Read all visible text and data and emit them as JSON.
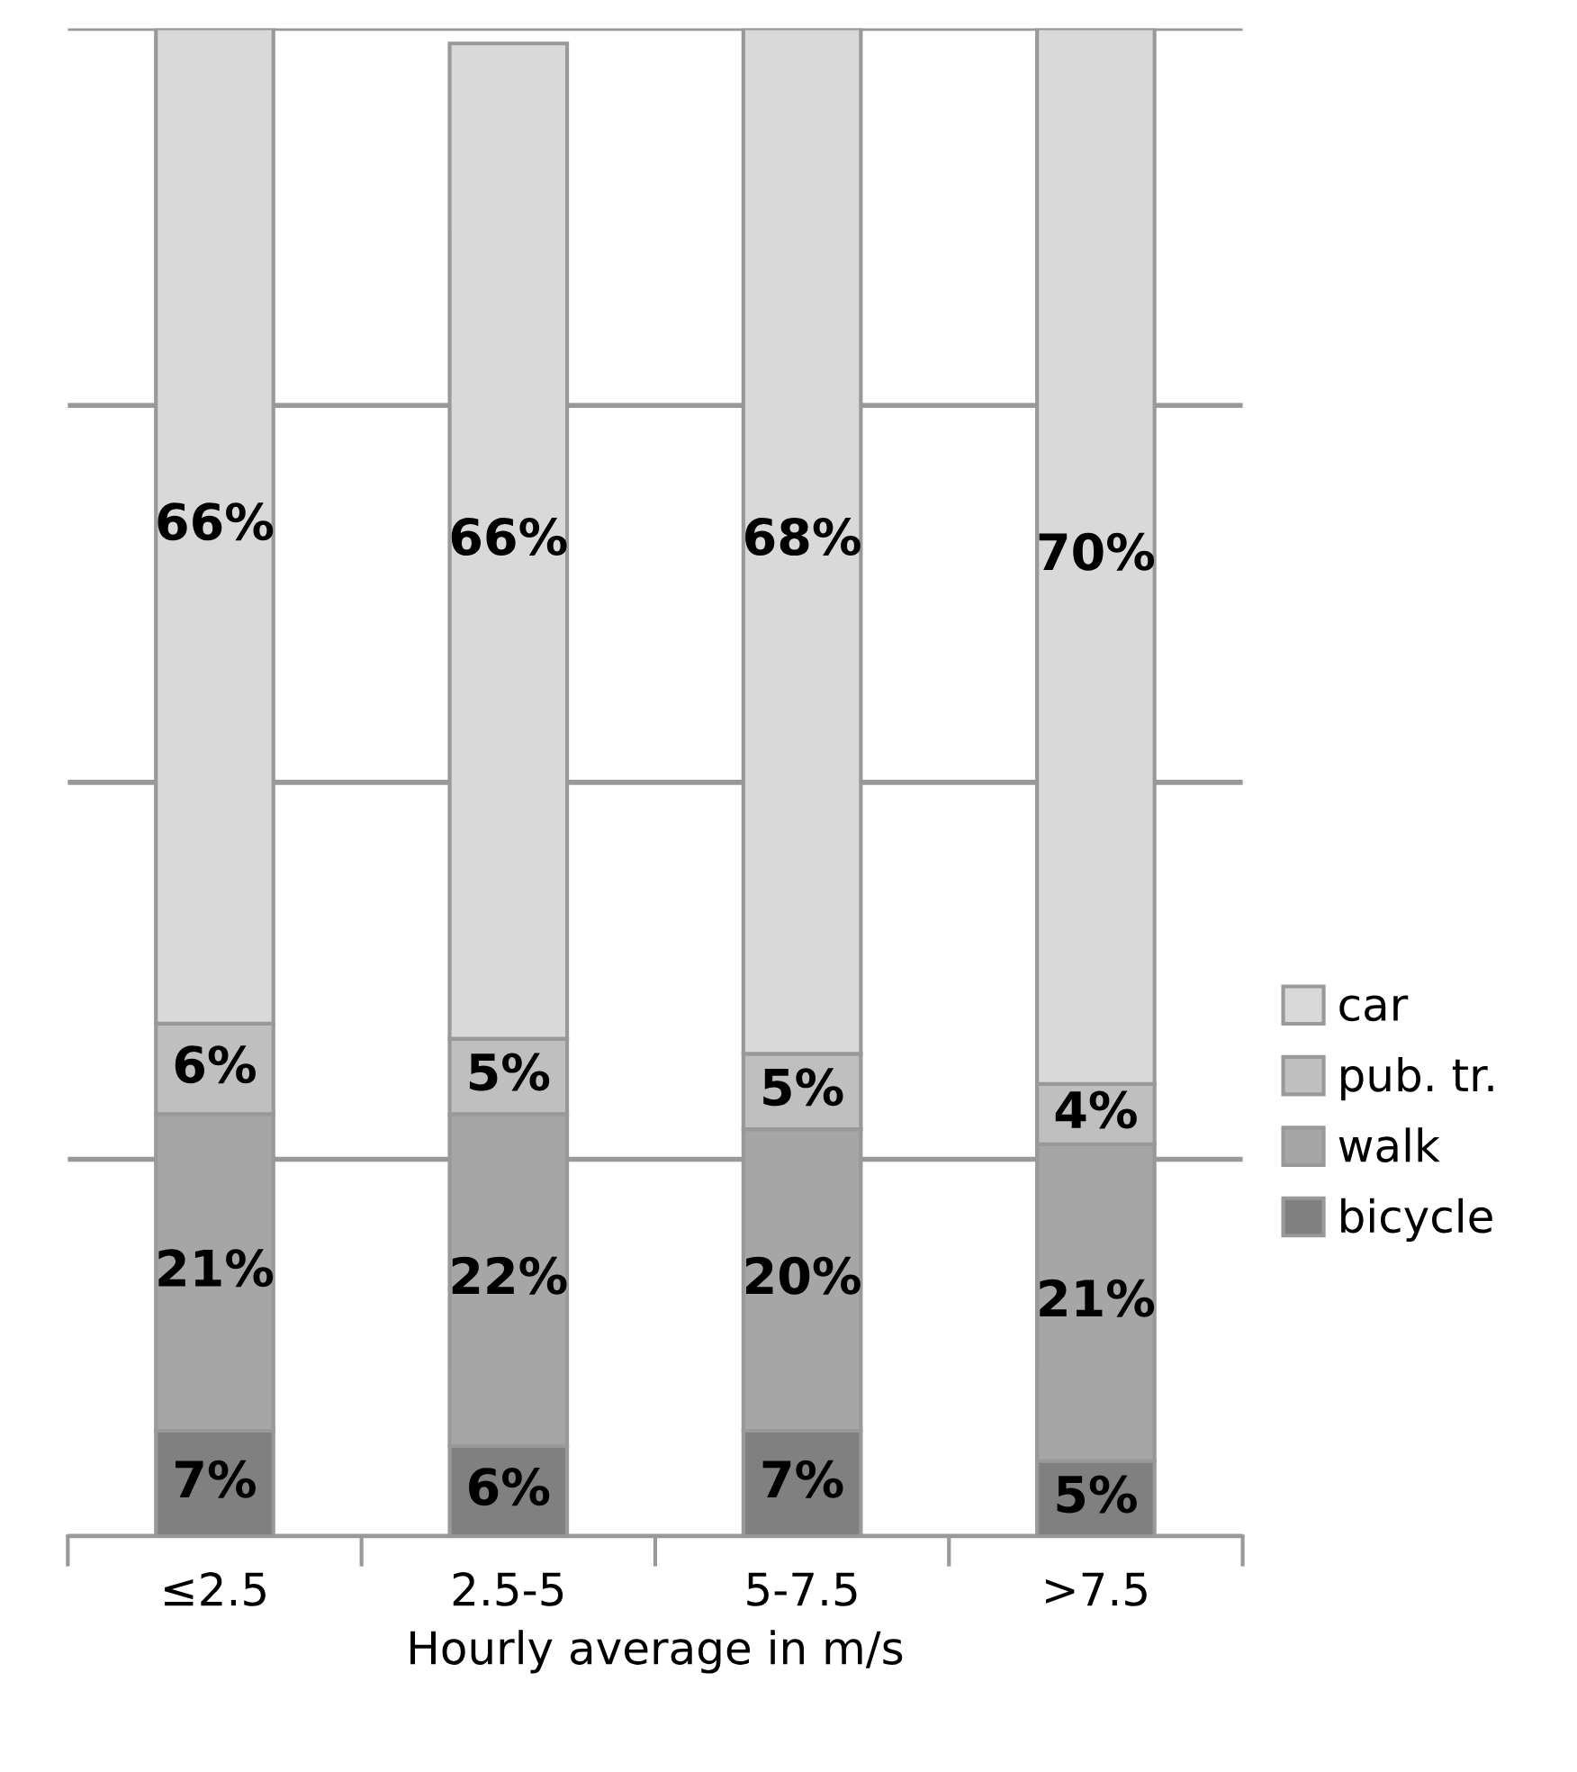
{
  "chart_data": {
    "type": "bar",
    "stacked": true,
    "xlabel": "Hourly average in m/s",
    "categories": [
      "≤2.5",
      "2.5-5",
      "5-7.5",
      ">7.5"
    ],
    "series": [
      {
        "name": "bicycle",
        "color": "#808080",
        "values": [
          7,
          6,
          7,
          5
        ],
        "value_labels": [
          "7%",
          "6%",
          "7%",
          "5%"
        ]
      },
      {
        "name": "walk",
        "color": "#a6a6a6",
        "values": [
          21,
          22,
          20,
          21
        ],
        "value_labels": [
          "21%",
          "22%",
          "20%",
          "21%"
        ]
      },
      {
        "name": "pub. tr.",
        "color": "#bfbfbf",
        "values": [
          6,
          5,
          5,
          4
        ],
        "value_labels": [
          "6%",
          "5%",
          "5%",
          "4%"
        ]
      },
      {
        "name": "car",
        "color": "#d9d9d9",
        "values": [
          66,
          66,
          68,
          70
        ],
        "value_labels": [
          "66%",
          "66%",
          "68%",
          "70%"
        ]
      }
    ],
    "ylim": [
      0,
      100
    ],
    "yticks": [
      {
        "value": 0,
        "label": null
      },
      {
        "value": 25,
        "label": null
      },
      {
        "value": 50,
        "label": null
      },
      {
        "value": 75,
        "label": null
      },
      {
        "value": 100,
        "label": null
      }
    ],
    "tick_labels": "x",
    "grid": "y",
    "legend": "right"
  }
}
